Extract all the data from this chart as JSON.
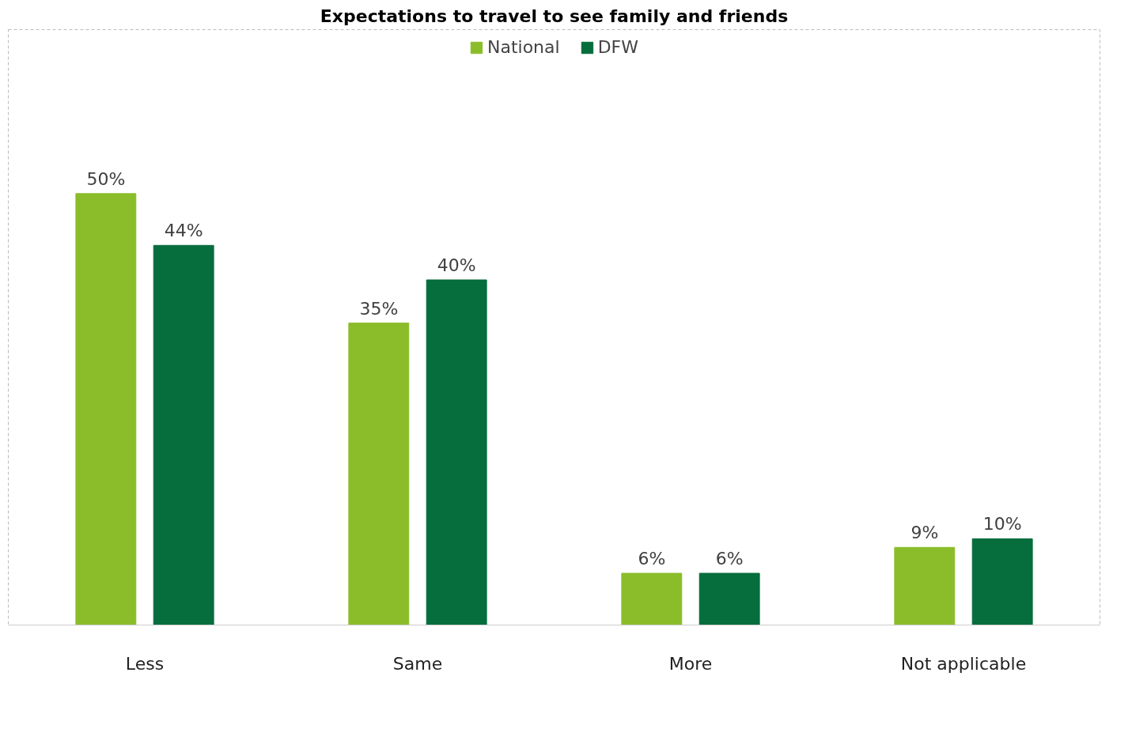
{
  "chart_data": {
    "type": "bar",
    "title": "Expectations to travel to see family and friends",
    "categories": [
      "Less",
      "Same",
      "More",
      "Not applicable"
    ],
    "series": [
      {
        "name": "National",
        "color": "#8abd29",
        "values": [
          50,
          35,
          6,
          9
        ],
        "value_labels": [
          "50%",
          "35%",
          "6%",
          "9%"
        ]
      },
      {
        "name": "DFW",
        "color": "#066d3c",
        "values": [
          44,
          40,
          6,
          10
        ],
        "value_labels": [
          "44%",
          "40%",
          "6%",
          "10%"
        ]
      }
    ],
    "legend": "top",
    "grid": false
  }
}
